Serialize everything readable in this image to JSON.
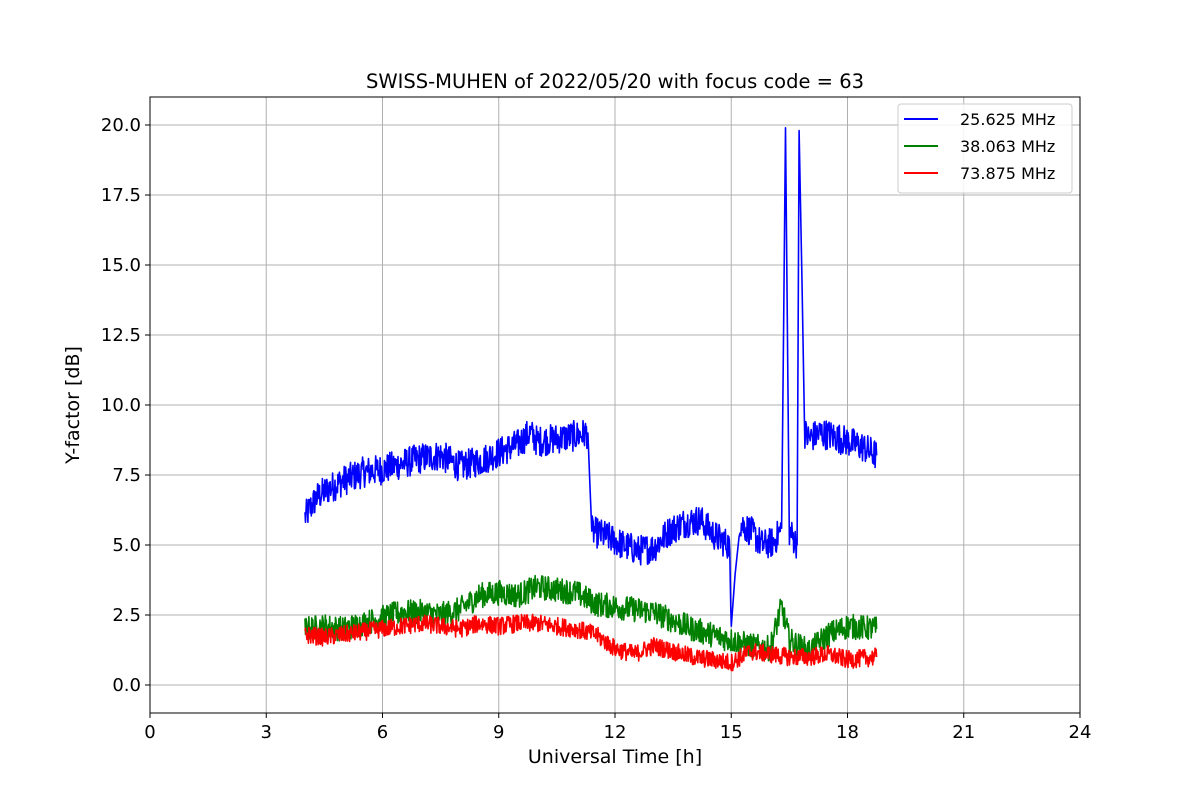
{
  "chart_data": {
    "type": "line",
    "title": "SWISS-MUHEN of 2022/05/20 with focus code = 63",
    "xlabel": "Universal Time [h]",
    "ylabel": "Y-factor [dB]",
    "xlim": [
      0,
      24
    ],
    "ylim": [
      -1.0,
      21.0
    ],
    "x_ticks": [
      0,
      3,
      6,
      9,
      12,
      15,
      18,
      21,
      24
    ],
    "x_tick_labels": [
      "0",
      "3",
      "6",
      "9",
      "12",
      "15",
      "18",
      "21",
      "24"
    ],
    "y_ticks": [
      0,
      2.5,
      5,
      7.5,
      10,
      12.5,
      15,
      17.5,
      20
    ],
    "y_tick_labels": [
      "0.0",
      "2.5",
      "5.0",
      "7.5",
      "10.0",
      "12.5",
      "15.0",
      "17.5",
      "20.0"
    ],
    "grid": true,
    "legend_position": "top-right",
    "series": [
      {
        "name": "25.625 MHz",
        "color": "#0000ff",
        "x": [
          4.0,
          4.3,
          4.6,
          5.0,
          5.5,
          6.0,
          6.5,
          7.0,
          7.5,
          8.0,
          8.5,
          9.0,
          9.5,
          9.8,
          10.0,
          10.5,
          11.0,
          11.3,
          11.4,
          11.8,
          12.2,
          12.6,
          13.0,
          13.4,
          13.8,
          14.2,
          14.6,
          14.95,
          15.0,
          15.2,
          15.5,
          15.8,
          16.1,
          16.3,
          16.4,
          16.5,
          16.7,
          16.75,
          16.9,
          17.0,
          17.3,
          17.6,
          18.0,
          18.4,
          18.75
        ],
        "y": [
          6.0,
          6.7,
          7.0,
          7.3,
          7.6,
          7.7,
          7.9,
          8.1,
          8.2,
          7.8,
          8.0,
          8.3,
          8.6,
          9.0,
          8.7,
          8.8,
          8.9,
          9.0,
          5.5,
          5.3,
          5.0,
          4.8,
          4.9,
          5.5,
          5.8,
          5.9,
          5.3,
          5.0,
          2.1,
          5.8,
          5.5,
          5.0,
          5.1,
          5.6,
          19.9,
          5.5,
          5.0,
          19.8,
          9.0,
          8.8,
          9.0,
          8.9,
          8.7,
          8.5,
          8.2
        ],
        "points": [
          [
            4.0,
            6.0
          ],
          [
            4.3,
            6.7
          ],
          [
            4.6,
            7.0
          ],
          [
            5.0,
            7.3
          ],
          [
            5.5,
            7.6
          ],
          [
            6.0,
            7.7
          ],
          [
            6.5,
            7.9
          ],
          [
            7.0,
            8.1
          ],
          [
            7.5,
            8.2
          ],
          [
            8.0,
            7.8
          ],
          [
            8.5,
            8.0
          ],
          [
            9.0,
            8.3
          ],
          [
            9.5,
            8.6
          ],
          [
            9.8,
            9.0
          ],
          [
            10.0,
            8.7
          ],
          [
            10.5,
            8.8
          ],
          [
            11.0,
            8.9
          ],
          [
            11.3,
            9.0
          ],
          [
            11.4,
            5.5
          ],
          [
            11.8,
            5.3
          ],
          [
            12.2,
            5.0
          ],
          [
            12.6,
            4.8
          ],
          [
            13.0,
            4.9
          ],
          [
            13.4,
            5.5
          ],
          [
            13.8,
            5.8
          ],
          [
            14.2,
            5.9
          ],
          [
            14.6,
            5.3
          ],
          [
            14.95,
            5.0
          ],
          [
            15.0,
            2.1
          ],
          [
            15.2,
            5.8
          ],
          [
            15.5,
            5.5
          ],
          [
            15.8,
            5.0
          ],
          [
            16.1,
            5.1
          ],
          [
            16.3,
            5.6
          ],
          [
            16.4,
            19.9
          ],
          [
            16.5,
            5.5
          ],
          [
            16.7,
            5.0
          ],
          [
            16.75,
            19.8
          ],
          [
            16.9,
            9.0
          ],
          [
            17.0,
            8.8
          ],
          [
            17.3,
            9.0
          ],
          [
            17.6,
            8.9
          ],
          [
            18.0,
            8.7
          ],
          [
            18.4,
            8.5
          ],
          [
            18.75,
            8.2
          ]
        ]
      },
      {
        "name": "38.063 MHz",
        "color": "#008000",
        "x": [
          4.0,
          4.5,
          5.0,
          5.5,
          6.0,
          6.5,
          7.0,
          7.5,
          8.0,
          8.5,
          9.0,
          9.5,
          10.0,
          10.5,
          11.0,
          11.5,
          12.0,
          12.5,
          13.0,
          13.5,
          14.0,
          14.5,
          15.0,
          15.5,
          16.0,
          16.3,
          16.5,
          17.0,
          17.5,
          18.0,
          18.75
        ],
        "y": [
          2.0,
          2.1,
          2.0,
          2.2,
          2.4,
          2.6,
          2.6,
          2.5,
          2.7,
          3.2,
          3.3,
          3.2,
          3.5,
          3.4,
          3.3,
          2.9,
          2.8,
          2.7,
          2.6,
          2.3,
          2.0,
          1.8,
          1.6,
          1.4,
          1.3,
          2.8,
          1.6,
          1.2,
          1.8,
          2.1,
          2.0
        ],
        "points": [
          [
            4.0,
            2.0
          ],
          [
            4.5,
            2.1
          ],
          [
            5.0,
            2.0
          ],
          [
            5.5,
            2.2
          ],
          [
            6.0,
            2.4
          ],
          [
            6.5,
            2.6
          ],
          [
            7.0,
            2.6
          ],
          [
            7.5,
            2.5
          ],
          [
            8.0,
            2.7
          ],
          [
            8.5,
            3.2
          ],
          [
            9.0,
            3.3
          ],
          [
            9.5,
            3.2
          ],
          [
            10.0,
            3.5
          ],
          [
            10.5,
            3.4
          ],
          [
            11.0,
            3.3
          ],
          [
            11.5,
            2.9
          ],
          [
            12.0,
            2.8
          ],
          [
            12.5,
            2.7
          ],
          [
            13.0,
            2.6
          ],
          [
            13.5,
            2.3
          ],
          [
            14.0,
            2.0
          ],
          [
            14.5,
            1.8
          ],
          [
            15.0,
            1.6
          ],
          [
            15.5,
            1.4
          ],
          [
            16.0,
            1.3
          ],
          [
            16.3,
            2.8
          ],
          [
            16.5,
            1.6
          ],
          [
            17.0,
            1.2
          ],
          [
            17.5,
            1.8
          ],
          [
            18.0,
            2.1
          ],
          [
            18.75,
            2.0
          ]
        ]
      },
      {
        "name": "73.875 MHz",
        "color": "#ff0000",
        "x": [
          4.0,
          4.5,
          5.0,
          5.5,
          6.0,
          6.5,
          7.0,
          7.5,
          8.0,
          8.5,
          9.0,
          9.5,
          10.0,
          10.5,
          11.0,
          11.5,
          12.0,
          12.5,
          13.0,
          13.5,
          14.0,
          14.5,
          15.0,
          15.5,
          16.0,
          16.5,
          17.0,
          17.5,
          18.0,
          18.75
        ],
        "y": [
          1.8,
          1.7,
          1.8,
          1.9,
          2.0,
          2.1,
          2.2,
          2.1,
          2.0,
          2.2,
          2.1,
          2.2,
          2.2,
          2.1,
          2.0,
          1.8,
          1.3,
          1.1,
          1.4,
          1.2,
          1.0,
          0.9,
          0.8,
          1.2,
          1.1,
          1.0,
          1.0,
          1.1,
          0.9,
          1.0
        ],
        "points": [
          [
            4.0,
            1.8
          ],
          [
            4.5,
            1.7
          ],
          [
            5.0,
            1.8
          ],
          [
            5.5,
            1.9
          ],
          [
            6.0,
            2.0
          ],
          [
            6.5,
            2.1
          ],
          [
            7.0,
            2.2
          ],
          [
            7.5,
            2.1
          ],
          [
            8.0,
            2.0
          ],
          [
            8.5,
            2.2
          ],
          [
            9.0,
            2.1
          ],
          [
            9.5,
            2.2
          ],
          [
            10.0,
            2.2
          ],
          [
            10.5,
            2.1
          ],
          [
            11.0,
            2.0
          ],
          [
            11.5,
            1.8
          ],
          [
            12.0,
            1.3
          ],
          [
            12.5,
            1.1
          ],
          [
            13.0,
            1.4
          ],
          [
            13.5,
            1.2
          ],
          [
            14.0,
            1.0
          ],
          [
            14.5,
            0.9
          ],
          [
            15.0,
            0.8
          ],
          [
            15.5,
            1.2
          ],
          [
            16.0,
            1.1
          ],
          [
            16.5,
            1.0
          ],
          [
            17.0,
            1.0
          ],
          [
            17.5,
            1.1
          ],
          [
            18.0,
            0.9
          ],
          [
            18.75,
            1.0
          ]
        ]
      }
    ]
  }
}
